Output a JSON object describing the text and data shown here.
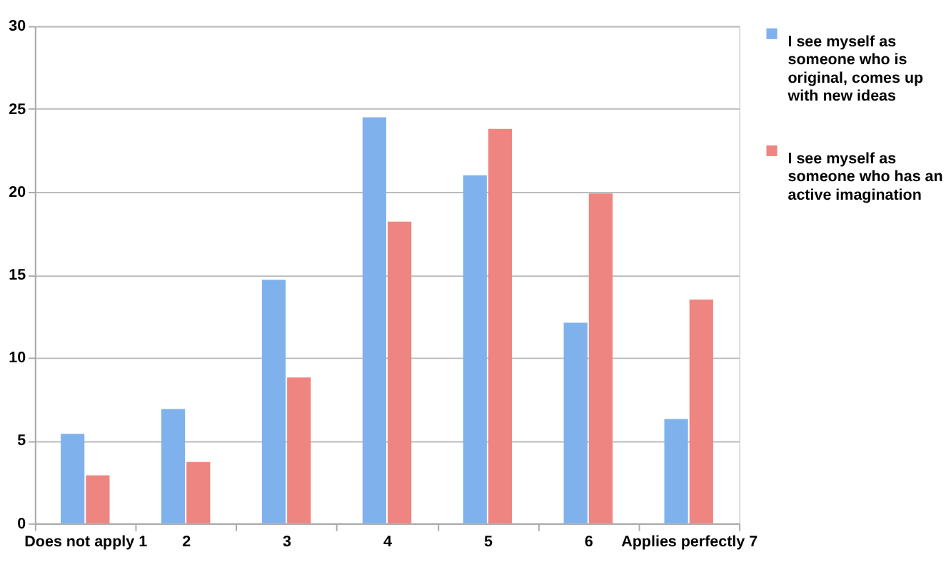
{
  "chart_data": {
    "type": "bar",
    "categories": [
      "Does not apply 1",
      "2",
      "3",
      "4",
      "5",
      "6",
      "Applies perfectly 7"
    ],
    "series": [
      {
        "name": "I see myself as someone who is original, comes up with new ideas",
        "color": "#7fb2ec",
        "values": [
          5.4,
          6.9,
          14.7,
          24.5,
          21.0,
          12.1,
          6.3
        ]
      },
      {
        "name": "I see myself as someone who has an active imagination",
        "color": "#ee8580",
        "values": [
          2.9,
          3.7,
          8.8,
          18.2,
          23.8,
          19.9,
          13.5
        ]
      }
    ],
    "ylim": [
      0,
      30
    ],
    "yticks": [
      0,
      5,
      10,
      15,
      20,
      25,
      30
    ],
    "grid": "y",
    "legend": "right"
  }
}
